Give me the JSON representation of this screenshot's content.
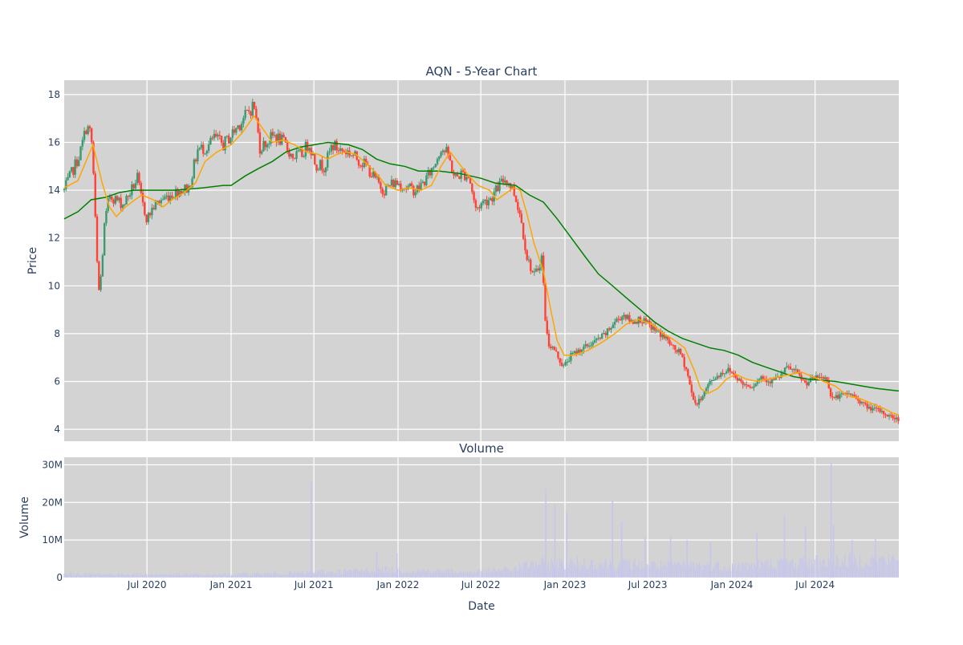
{
  "chart_data": [
    {
      "type": "candlestick",
      "title": "AQN - 5-Year Chart",
      "ylabel": "Price",
      "ylim": [
        3.5,
        18.6
      ],
      "yticks": [
        4,
        6,
        8,
        10,
        12,
        14,
        16,
        18
      ],
      "xlim": [
        "2020-01-02",
        "2024-12-31"
      ],
      "xticks": [
        "2020-07-01",
        "2021-01-01",
        "2021-07-01",
        "2022-01-01",
        "2022-07-01",
        "2023-01-01",
        "2023-07-01",
        "2024-01-01",
        "2024-07-01"
      ],
      "xtick_labels": [
        "Jul 2020",
        "Jan 2021",
        "Jul 2021",
        "Jan 2022",
        "Jul 2022",
        "Jan 2023",
        "Jul 2023",
        "Jan 2024",
        "Jul 2024"
      ],
      "grid": true,
      "colors": {
        "background": "#d3d3d3",
        "up": "#3d9970",
        "down": "#ff4136",
        "sma_short": "#ffa500",
        "sma_long": "#008000"
      },
      "close_series_approx": [
        [
          "2020-01-02",
          14.0
        ],
        [
          "2020-01-20",
          14.8
        ],
        [
          "2020-02-05",
          15.5
        ],
        [
          "2020-02-20",
          16.7
        ],
        [
          "2020-03-01",
          16.3
        ],
        [
          "2020-03-08",
          14.0
        ],
        [
          "2020-03-12",
          11.5
        ],
        [
          "2020-03-18",
          9.8
        ],
        [
          "2020-03-23",
          10.5
        ],
        [
          "2020-03-30",
          12.5
        ],
        [
          "2020-04-10",
          13.8
        ],
        [
          "2020-04-25",
          13.6
        ],
        [
          "2020-05-10",
          13.4
        ],
        [
          "2020-05-25",
          13.9
        ],
        [
          "2020-06-10",
          14.5
        ],
        [
          "2020-06-20",
          13.5
        ],
        [
          "2020-07-01",
          12.8
        ],
        [
          "2020-07-15",
          13.3
        ],
        [
          "2020-08-01",
          13.6
        ],
        [
          "2020-08-20",
          13.8
        ],
        [
          "2020-09-10",
          14.0
        ],
        [
          "2020-10-01",
          14.1
        ],
        [
          "2020-10-20",
          15.7
        ],
        [
          "2020-11-10",
          15.8
        ],
        [
          "2020-11-25",
          16.2
        ],
        [
          "2020-12-15",
          15.9
        ],
        [
          "2021-01-01",
          16.3
        ],
        [
          "2021-01-20",
          16.8
        ],
        [
          "2021-02-05",
          17.2
        ],
        [
          "2021-02-20",
          17.6
        ],
        [
          "2021-03-05",
          15.8
        ],
        [
          "2021-03-20",
          16.0
        ],
        [
          "2021-04-05",
          16.3
        ],
        [
          "2021-04-25",
          16.0
        ],
        [
          "2021-05-15",
          15.4
        ],
        [
          "2021-06-05",
          15.5
        ],
        [
          "2021-06-20",
          16.0
        ],
        [
          "2021-07-05",
          15.1
        ],
        [
          "2021-07-25",
          15.0
        ],
        [
          "2021-08-10",
          15.9
        ],
        [
          "2021-08-25",
          15.7
        ],
        [
          "2021-09-15",
          15.6
        ],
        [
          "2021-10-05",
          15.3
        ],
        [
          "2021-10-25",
          15.0
        ],
        [
          "2021-11-10",
          14.5
        ],
        [
          "2021-12-01",
          14.0
        ],
        [
          "2021-12-20",
          14.3
        ],
        [
          "2022-01-01",
          14.3
        ],
        [
          "2022-01-20",
          14.1
        ],
        [
          "2022-02-10",
          14.0
        ],
        [
          "2022-03-01",
          14.4
        ],
        [
          "2022-03-20",
          15.0
        ],
        [
          "2022-04-05",
          15.8
        ],
        [
          "2022-04-20",
          15.5
        ],
        [
          "2022-05-05",
          14.5
        ],
        [
          "2022-05-20",
          14.7
        ],
        [
          "2022-06-05",
          14.6
        ],
        [
          "2022-06-20",
          13.2
        ],
        [
          "2022-07-05",
          13.5
        ],
        [
          "2022-07-25",
          13.7
        ],
        [
          "2022-08-10",
          14.2
        ],
        [
          "2022-08-25",
          14.5
        ],
        [
          "2022-09-10",
          14.0
        ],
        [
          "2022-09-25",
          13.0
        ],
        [
          "2022-10-10",
          11.2
        ],
        [
          "2022-10-25",
          10.4
        ],
        [
          "2022-11-05",
          10.8
        ],
        [
          "2022-11-12",
          11.3
        ],
        [
          "2022-11-18",
          8.8
        ],
        [
          "2022-11-25",
          7.6
        ],
        [
          "2022-12-10",
          7.3
        ],
        [
          "2022-12-28",
          6.6
        ],
        [
          "2023-01-15",
          7.1
        ],
        [
          "2023-02-01",
          7.3
        ],
        [
          "2023-02-20",
          7.5
        ],
        [
          "2023-03-10",
          7.7
        ],
        [
          "2023-04-01",
          8.0
        ],
        [
          "2023-04-20",
          8.5
        ],
        [
          "2023-05-10",
          8.8
        ],
        [
          "2023-05-25",
          8.5
        ],
        [
          "2023-06-15",
          8.6
        ],
        [
          "2023-07-01",
          8.4
        ],
        [
          "2023-07-20",
          8.1
        ],
        [
          "2023-08-10",
          7.8
        ],
        [
          "2023-08-25",
          7.4
        ],
        [
          "2023-09-10",
          7.2
        ],
        [
          "2023-09-25",
          6.4
        ],
        [
          "2023-10-05",
          5.5
        ],
        [
          "2023-10-15",
          5.0
        ],
        [
          "2023-10-28",
          5.4
        ],
        [
          "2023-11-15",
          6.0
        ],
        [
          "2023-12-05",
          6.3
        ],
        [
          "2023-12-25",
          6.5
        ],
        [
          "2024-01-10",
          6.2
        ],
        [
          "2024-01-25",
          5.9
        ],
        [
          "2024-02-15",
          5.8
        ],
        [
          "2024-03-05",
          6.2
        ],
        [
          "2024-03-25",
          6.0
        ],
        [
          "2024-04-15",
          6.2
        ],
        [
          "2024-05-01",
          6.6
        ],
        [
          "2024-05-20",
          6.4
        ],
        [
          "2024-06-10",
          5.9
        ],
        [
          "2024-06-25",
          6.1
        ],
        [
          "2024-07-10",
          6.2
        ],
        [
          "2024-07-28",
          6.1
        ],
        [
          "2024-08-05",
          5.3
        ],
        [
          "2024-08-25",
          5.4
        ],
        [
          "2024-09-15",
          5.5
        ],
        [
          "2024-10-05",
          5.2
        ],
        [
          "2024-10-25",
          4.9
        ],
        [
          "2024-11-15",
          4.8
        ],
        [
          "2024-12-05",
          4.6
        ],
        [
          "2024-12-31",
          4.4
        ]
      ],
      "sma_short_approx": [
        [
          "2020-01-02",
          14.1
        ],
        [
          "2020-02-01",
          14.4
        ],
        [
          "2020-02-25",
          15.5
        ],
        [
          "2020-03-05",
          15.9
        ],
        [
          "2020-03-25",
          14.3
        ],
        [
          "2020-04-10",
          13.3
        ],
        [
          "2020-04-25",
          12.9
        ],
        [
          "2020-05-15",
          13.3
        ],
        [
          "2020-06-05",
          13.6
        ],
        [
          "2020-06-20",
          13.8
        ],
        [
          "2020-07-15",
          13.6
        ],
        [
          "2020-08-05",
          13.3
        ],
        [
          "2020-08-25",
          13.6
        ],
        [
          "2020-09-20",
          13.9
        ],
        [
          "2020-10-15",
          14.3
        ],
        [
          "2020-11-05",
          15.2
        ],
        [
          "2020-12-01",
          15.6
        ],
        [
          "2021-01-01",
          15.9
        ],
        [
          "2021-01-25",
          16.4
        ],
        [
          "2021-02-20",
          17.1
        ],
        [
          "2021-03-10",
          16.6
        ],
        [
          "2021-04-01",
          16.0
        ],
        [
          "2021-04-25",
          16.1
        ],
        [
          "2021-05-20",
          15.9
        ],
        [
          "2021-06-15",
          15.6
        ],
        [
          "2021-07-10",
          15.5
        ],
        [
          "2021-08-01",
          15.3
        ],
        [
          "2021-08-20",
          15.5
        ],
        [
          "2021-09-10",
          15.6
        ],
        [
          "2021-10-01",
          15.5
        ],
        [
          "2021-10-25",
          15.1
        ],
        [
          "2021-11-15",
          14.7
        ],
        [
          "2021-12-05",
          14.2
        ],
        [
          "2022-01-01",
          14.0
        ],
        [
          "2022-01-25",
          14.1
        ],
        [
          "2022-02-20",
          14.0
        ],
        [
          "2022-03-15",
          14.2
        ],
        [
          "2022-04-05",
          15.0
        ],
        [
          "2022-04-25",
          15.6
        ],
        [
          "2022-05-15",
          15.1
        ],
        [
          "2022-06-05",
          14.6
        ],
        [
          "2022-06-25",
          14.2
        ],
        [
          "2022-07-20",
          14.0
        ],
        [
          "2022-08-05",
          13.6
        ],
        [
          "2022-08-20",
          13.8
        ],
        [
          "2022-09-10",
          14.1
        ],
        [
          "2022-09-25",
          14.0
        ],
        [
          "2022-10-10",
          13.0
        ],
        [
          "2022-10-25",
          11.8
        ],
        [
          "2022-11-15",
          10.6
        ],
        [
          "2022-12-01",
          9.0
        ],
        [
          "2022-12-15",
          7.7
        ],
        [
          "2022-12-30",
          7.1
        ],
        [
          "2023-01-20",
          7.1
        ],
        [
          "2023-02-20",
          7.3
        ],
        [
          "2023-03-20",
          7.6
        ],
        [
          "2023-04-20",
          8.0
        ],
        [
          "2023-05-15",
          8.4
        ],
        [
          "2023-06-10",
          8.6
        ],
        [
          "2023-07-10",
          8.4
        ],
        [
          "2023-08-05",
          8.0
        ],
        [
          "2023-08-30",
          7.7
        ],
        [
          "2023-09-20",
          7.4
        ],
        [
          "2023-10-10",
          6.5
        ],
        [
          "2023-10-25",
          5.7
        ],
        [
          "2023-11-10",
          5.5
        ],
        [
          "2023-12-01",
          5.7
        ],
        [
          "2023-12-20",
          6.1
        ],
        [
          "2024-01-10",
          6.3
        ],
        [
          "2024-02-01",
          6.1
        ],
        [
          "2024-02-25",
          6.0
        ],
        [
          "2024-03-20",
          6.1
        ],
        [
          "2024-04-15",
          6.2
        ],
        [
          "2024-05-10",
          6.3
        ],
        [
          "2024-06-01",
          6.4
        ],
        [
          "2024-06-25",
          6.2
        ],
        [
          "2024-07-20",
          6.0
        ],
        [
          "2024-08-15",
          5.8
        ],
        [
          "2024-09-10",
          5.4
        ],
        [
          "2024-10-05",
          5.3
        ],
        [
          "2024-10-30",
          5.1
        ],
        [
          "2024-11-25",
          4.9
        ],
        [
          "2024-12-15",
          4.7
        ],
        [
          "2024-12-31",
          4.6
        ]
      ],
      "sma_long_approx": [
        [
          "2020-01-02",
          12.8
        ],
        [
          "2020-02-01",
          13.1
        ],
        [
          "2020-03-01",
          13.6
        ],
        [
          "2020-04-01",
          13.7
        ],
        [
          "2020-05-01",
          13.9
        ],
        [
          "2020-06-01",
          14.0
        ],
        [
          "2020-07-01",
          14.0
        ],
        [
          "2020-09-01",
          14.0
        ],
        [
          "2020-11-01",
          14.1
        ],
        [
          "2020-12-15",
          14.2
        ],
        [
          "2021-01-01",
          14.2
        ],
        [
          "2021-02-01",
          14.6
        ],
        [
          "2021-03-01",
          14.9
        ],
        [
          "2021-04-01",
          15.2
        ],
        [
          "2021-05-01",
          15.6
        ],
        [
          "2021-06-01",
          15.8
        ],
        [
          "2021-07-01",
          15.9
        ],
        [
          "2021-08-01",
          16.0
        ],
        [
          "2021-09-15",
          15.9
        ],
        [
          "2021-10-15",
          15.7
        ],
        [
          "2021-11-15",
          15.3
        ],
        [
          "2021-12-15",
          15.1
        ],
        [
          "2022-01-15",
          15.0
        ],
        [
          "2022-02-15",
          14.8
        ],
        [
          "2022-04-01",
          14.8
        ],
        [
          "2022-05-15",
          14.7
        ],
        [
          "2022-07-01",
          14.5
        ],
        [
          "2022-08-01",
          14.3
        ],
        [
          "2022-09-15",
          14.2
        ],
        [
          "2022-10-15",
          13.8
        ],
        [
          "2022-11-15",
          13.5
        ],
        [
          "2022-12-15",
          12.8
        ],
        [
          "2023-01-15",
          12.0
        ],
        [
          "2023-02-15",
          11.2
        ],
        [
          "2023-03-15",
          10.5
        ],
        [
          "2023-04-15",
          10.0
        ],
        [
          "2023-05-15",
          9.5
        ],
        [
          "2023-06-15",
          9.0
        ],
        [
          "2023-07-15",
          8.5
        ],
        [
          "2023-08-15",
          8.1
        ],
        [
          "2023-09-15",
          7.8
        ],
        [
          "2023-10-15",
          7.6
        ],
        [
          "2023-11-15",
          7.4
        ],
        [
          "2023-12-15",
          7.3
        ],
        [
          "2024-01-15",
          7.1
        ],
        [
          "2024-02-15",
          6.8
        ],
        [
          "2024-03-15",
          6.6
        ],
        [
          "2024-04-15",
          6.4
        ],
        [
          "2024-05-15",
          6.2
        ],
        [
          "2024-06-15",
          6.1
        ],
        [
          "2024-07-15",
          6.05
        ],
        [
          "2024-08-15",
          6.0
        ],
        [
          "2024-09-15",
          5.9
        ],
        [
          "2024-10-15",
          5.8
        ],
        [
          "2024-11-15",
          5.7
        ],
        [
          "2024-12-31",
          5.6
        ]
      ]
    },
    {
      "type": "bar",
      "title": "Volume",
      "xlabel": "Date",
      "ylabel": "Volume",
      "ylim": [
        0,
        32000000
      ],
      "yticks": [
        0,
        10000000,
        20000000,
        30000000
      ],
      "ytick_labels": [
        "0",
        "10M",
        "20M",
        "30M"
      ],
      "grid": true,
      "colors": {
        "background": "#d3d3d3",
        "bar": "#c6c6ec"
      },
      "volume_envelope_approx": [
        [
          "2020-01-02",
          1200000
        ],
        [
          "2020-06-01",
          1000000
        ],
        [
          "2020-12-01",
          900000
        ],
        [
          "2021-03-01",
          1200000
        ],
        [
          "2021-06-01",
          1500000
        ],
        [
          "2021-09-01",
          2000000
        ],
        [
          "2021-12-01",
          2500000
        ],
        [
          "2022-03-01",
          2200000
        ],
        [
          "2022-06-01",
          1800000
        ],
        [
          "2022-09-01",
          2500000
        ],
        [
          "2022-11-01",
          4500000
        ],
        [
          "2023-01-01",
          4500000
        ],
        [
          "2023-04-01",
          4500000
        ],
        [
          "2023-07-01",
          4000000
        ],
        [
          "2023-10-01",
          4000000
        ],
        [
          "2024-01-01",
          3500000
        ],
        [
          "2024-04-01",
          4500000
        ],
        [
          "2024-07-01",
          5000000
        ],
        [
          "2024-10-01",
          5500000
        ],
        [
          "2024-12-31",
          5500000
        ]
      ],
      "volume_spikes_approx": [
        [
          "2021-06-25",
          25500000
        ],
        [
          "2021-11-15",
          7000000
        ],
        [
          "2021-12-30",
          6500000
        ],
        [
          "2022-11-20",
          23500000
        ],
        [
          "2022-12-10",
          19500000
        ],
        [
          "2023-01-05",
          17500000
        ],
        [
          "2023-04-15",
          20500000
        ],
        [
          "2023-05-05",
          15000000
        ],
        [
          "2023-06-25",
          10500000
        ],
        [
          "2023-08-20",
          11000000
        ],
        [
          "2023-09-25",
          10000000
        ],
        [
          "2023-11-15",
          9500000
        ],
        [
          "2024-02-25",
          12000000
        ],
        [
          "2024-04-25",
          16500000
        ],
        [
          "2024-06-10",
          13500000
        ],
        [
          "2024-08-05",
          30500000
        ],
        [
          "2024-08-10",
          14000000
        ],
        [
          "2024-09-20",
          10000000
        ],
        [
          "2024-11-10",
          10500000
        ]
      ]
    }
  ]
}
